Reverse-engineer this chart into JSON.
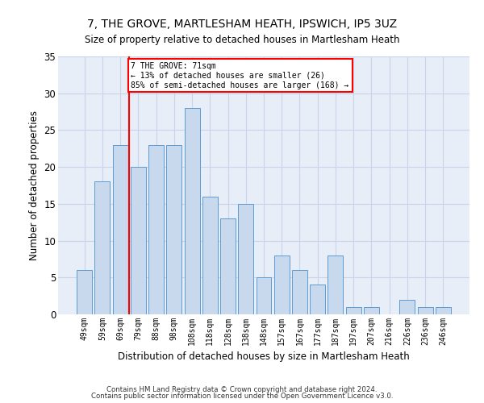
{
  "title1": "7, THE GROVE, MARTLESHAM HEATH, IPSWICH, IP5 3UZ",
  "title2": "Size of property relative to detached houses in Martlesham Heath",
  "xlabel": "Distribution of detached houses by size in Martlesham Heath",
  "ylabel": "Number of detached properties",
  "categories": [
    "49sqm",
    "59sqm",
    "69sqm",
    "79sqm",
    "88sqm",
    "98sqm",
    "108sqm",
    "118sqm",
    "128sqm",
    "138sqm",
    "148sqm",
    "157sqm",
    "167sqm",
    "177sqm",
    "187sqm",
    "197sqm",
    "207sqm",
    "216sqm",
    "226sqm",
    "236sqm",
    "246sqm"
  ],
  "values": [
    6,
    18,
    23,
    20,
    23,
    23,
    28,
    16,
    13,
    15,
    5,
    8,
    6,
    4,
    8,
    1,
    1,
    0,
    2,
    1,
    1
  ],
  "bar_color": "#c9d9ed",
  "bar_edge_color": "#5b9bd5",
  "annotation_line1": "7 THE GROVE: 71sqm",
  "annotation_line2": "← 13% of detached houses are smaller (26)",
  "annotation_line3": "85% of semi-detached houses are larger (168) →",
  "annotation_box_color": "white",
  "annotation_box_edge_color": "red",
  "vline_color": "red",
  "grid_color": "#c8d4e8",
  "background_color": "#e8eef8",
  "footer1": "Contains HM Land Registry data © Crown copyright and database right 2024.",
  "footer2": "Contains public sector information licensed under the Open Government Licence v3.0.",
  "ylim": [
    0,
    35
  ],
  "yticks": [
    0,
    5,
    10,
    15,
    20,
    25,
    30,
    35
  ]
}
